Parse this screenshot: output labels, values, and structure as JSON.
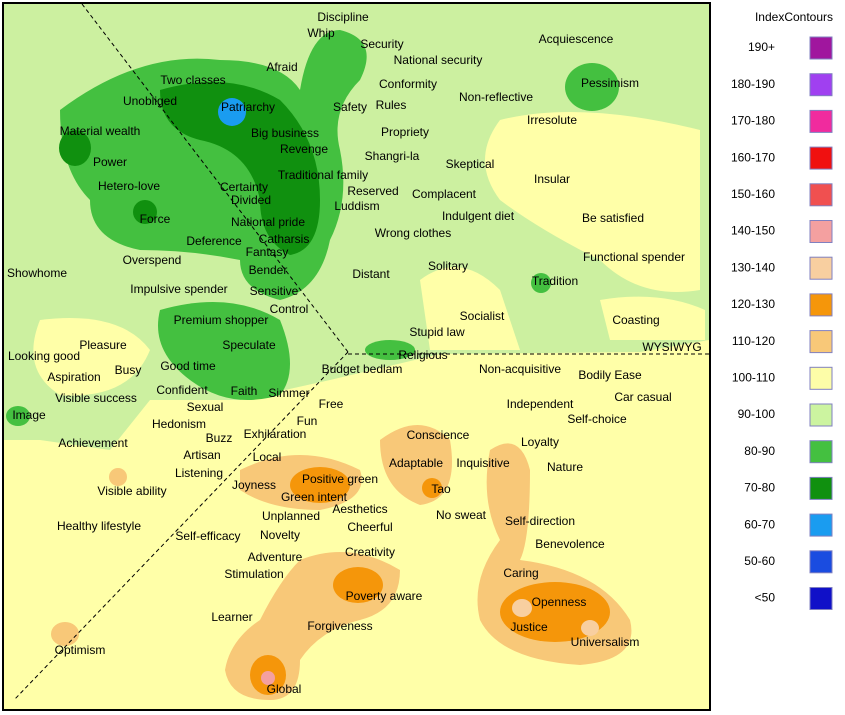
{
  "legend": {
    "title": "IndexContours",
    "items": [
      {
        "label": "190+",
        "color": "#a0169e"
      },
      {
        "label": "180-190",
        "color": "#a040f0"
      },
      {
        "label": "170-180",
        "color": "#f02b9e"
      },
      {
        "label": "160-170",
        "color": "#f01010"
      },
      {
        "label": "150-160",
        "color": "#f05050"
      },
      {
        "label": "140-150",
        "color": "#f4a0a0"
      },
      {
        "label": "130-140",
        "color": "#f8cfa0"
      },
      {
        "label": "120-130",
        "color": "#f5960a"
      },
      {
        "label": "110-120",
        "color": "#f8c878"
      },
      {
        "label": "100-110",
        "color": "#fdfda8"
      },
      {
        "label": "90-100",
        "color": "#ccf4a0"
      },
      {
        "label": "80-90",
        "color": "#44c040"
      },
      {
        "label": "70-80",
        "color": "#10900f"
      },
      {
        "label": "60-70",
        "color": "#1a9cf0"
      },
      {
        "label": "50-60",
        "color": "#1a4ce0"
      },
      {
        "label": "<50",
        "color": "#1010c8"
      }
    ]
  },
  "terms": [
    "Discipline",
    "Whip",
    "Security",
    "National security",
    "Acquiescence",
    "Afraid",
    "Two classes",
    "Conformity",
    "Pessimism",
    "Unobliged",
    "Patriarchy",
    "Safety",
    "Rules",
    "Non-reflective",
    "Irresolute",
    "Material wealth",
    "Big business",
    "Propriety",
    "Revenge",
    "Power",
    "Shangri-la",
    "Skeptical",
    "Traditional family",
    "Insular",
    "Hetero-love",
    "Certainty",
    "Reserved",
    "Complacent",
    "Divided",
    "Luddism",
    "Force",
    "National pride",
    "Indulgent diet",
    "Be satisfied",
    "Wrong clothes",
    "Deference",
    "Catharsis",
    "Fantasy",
    "Functional spender",
    "Overspend",
    "Bender",
    "Solitary",
    "Showhome",
    "Distant",
    "Tradition",
    "Impulsive spender",
    "Sensitive",
    "Control",
    "Socialist",
    "Coasting",
    "Premium shopper",
    "Stupid law",
    "Pleasure",
    "Speculate",
    "WYSIWYG",
    "Looking good",
    "Religious",
    "Busy",
    "Good time",
    "Budget bedlam",
    "Non-acquisitive",
    "Bodily Ease",
    "Aspiration",
    "Confident",
    "Faith",
    "Simmer",
    "Car casual",
    "Visible success",
    "Free",
    "Independent",
    "Sexual",
    "Self-choice",
    "Image",
    "Hedonism",
    "Fun",
    "Conscience",
    "Buzz",
    "Exhilaration",
    "Loyalty",
    "Achievement",
    "Artisan",
    "Local",
    "Inquisitive",
    "Adaptable",
    "Nature",
    "Listening",
    "Positive green",
    "Joyness",
    "Tao",
    "Visible ability",
    "Green intent",
    "Aesthetics",
    "No sweat",
    "Unplanned",
    "Self-direction",
    "Healthy lifestyle",
    "Cheerful",
    "Self-efficacy",
    "Novelty",
    "Benevolence",
    "Creativity",
    "Adventure",
    "Stimulation",
    "Caring",
    "Poverty aware",
    "Learner",
    "Openness",
    "Forgiveness",
    "Justice",
    "Universalism",
    "Optimism",
    "Global"
  ]
}
